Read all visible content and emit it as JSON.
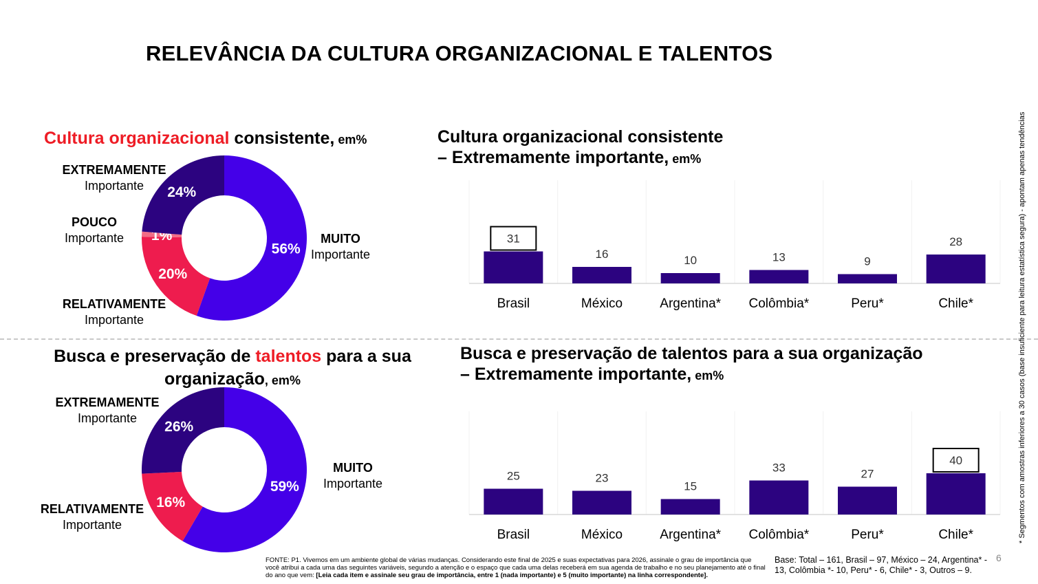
{
  "title": "RELEVÂNCIA DA CULTURA ORGANIZACIONAL E TALENTOS",
  "top": {
    "donut_title_red": "Cultura organizacional",
    "donut_title_rest": " consistente,",
    "donut_title_unit": " em%",
    "bar_title_line1": "Cultura organizacional consistente",
    "bar_title_line2": "– Extremamente importante,",
    "bar_title_unit": " em%",
    "labels": {
      "extremamente_b": "EXTREMAMENTE",
      "extremamente_t": "Importante",
      "pouco_b": "POUCO",
      "pouco_t": "Importante",
      "relativamente_b": "RELATIVAMENTE",
      "relativamente_t": "Importante",
      "muito_b": "MUITO",
      "muito_t": "Importante"
    }
  },
  "bottom": {
    "donut_title_a": "Busca e preservação de ",
    "donut_title_red": "talentos",
    "donut_title_b": " para a sua",
    "donut_title_c": "organização",
    "donut_title_unit": ", em%",
    "bar_title_line1": "Busca e preservação de talentos para a sua organização",
    "bar_title_line2": "– Extremamente importante,",
    "bar_title_unit": " em%",
    "labels": {
      "extremamente_b": "EXTREMAMENTE",
      "extremamente_t": "Importante",
      "relativamente_b": "RELATIVAMENTE",
      "relativamente_t": "Importante",
      "muito_b": "MUITO",
      "muito_t": "Importante"
    }
  },
  "chart_data": [
    {
      "type": "pie",
      "title": "Cultura organizacional consistente, em%",
      "categories": [
        "MUITO Importante",
        "RELATIVAMENTE Importante",
        "POUCO Importante",
        "EXTREMAMENTE Importante"
      ],
      "values": [
        56,
        20,
        1,
        24
      ],
      "labels": [
        "56%",
        "20%",
        "1%",
        "24%"
      ],
      "colors": [
        "#4400e8",
        "#ee1c4e",
        "#f26b86",
        "#2c0380"
      ]
    },
    {
      "type": "bar",
      "title": "Cultura organizacional consistente – Extremamente importante, em%",
      "categories": [
        "Brasil",
        "México",
        "Argentina*",
        "Colômbia*",
        "Peru*",
        "Chile*"
      ],
      "values": [
        31,
        16,
        10,
        13,
        9,
        28
      ],
      "highlighted": [
        "Brasil"
      ],
      "color": "#2c0380"
    },
    {
      "type": "pie",
      "title": "Busca e preservação de talentos para a sua organização, em%",
      "categories": [
        "MUITO Importante",
        "RELATIVAMENTE Importante",
        "EXTREMAMENTE Importante"
      ],
      "values": [
        59,
        16,
        26
      ],
      "labels": [
        "59%",
        "16%",
        "26%"
      ],
      "colors": [
        "#4400e8",
        "#ee1c4e",
        "#2c0380"
      ]
    },
    {
      "type": "bar",
      "title": "Busca e preservação de talentos para a sua organização – Extremamente importante, em%",
      "categories": [
        "Brasil",
        "México",
        "Argentina*",
        "Colômbia*",
        "Peru*",
        "Chile*"
      ],
      "values": [
        25,
        23,
        15,
        33,
        27,
        40
      ],
      "highlighted": [
        "Chile*"
      ],
      "color": "#2c0380"
    }
  ],
  "footer": {
    "fonte": "FONTE: P1. Vivemos em um ambiente global de várias mudanças. Considerando este final de 2025 e suas expectativas para 2026, assinale o grau de importância que você atribui a cada uma das seguintes variáveis, segundo a atenção e o espaço que cada uma delas receberá em sua agenda de trabalho e no seu planejamento até o final do ano que vem: ",
    "fonte_bold": "[Leia cada item e assinale seu grau de importância, entre 1 (nada importante) e 5 (muito importante) na linha correspondente].",
    "base": "Base: Total – 161, Brasil – 97, México – 24, Argentina* - 13, Colômbia *- 10, Peru* - 6, Chile* - 3, Outros – 9.",
    "page": "6",
    "side_note": "* Segmentos com amostras inferiores a 30 casos (base insuficiente para leitura estatística segura) - apontam apenas tendências"
  }
}
